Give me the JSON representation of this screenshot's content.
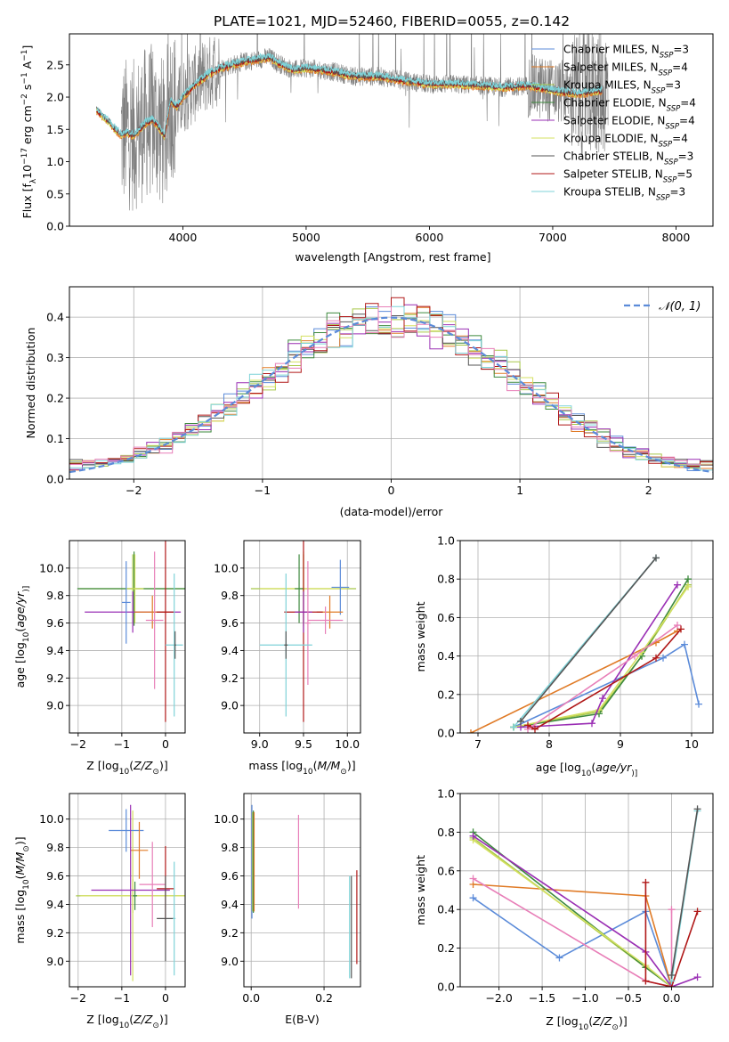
{
  "title": "PLATE=1021, MJD=52460, FIBERID=0055, z=0.142",
  "colors": {
    "chabrier_miles": "#5b8bd9",
    "salpeter_miles": "#e07b27",
    "kroupa_miles": "#a8c84a",
    "chabrier_elodie": "#3e8a3e",
    "salpeter_elodie": "#9a2fb4",
    "kroupa_elodie": "#d4e060",
    "chabrier_stelib": "#555555",
    "salpeter_stelib": "#b01818",
    "kroupa_stelib": "#7fd3d8",
    "pink": "#e87fb8",
    "data": "#808080",
    "gaussian": "#5b8bd9",
    "grid": "#b0b0b0"
  },
  "chart_data": [
    {
      "id": "spectrum",
      "type": "line",
      "title": "PLATE=1021, MJD=52460, FIBERID=0055, z=0.142",
      "xlabel": "wavelength [Angstrom, rest frame]",
      "ylabel": "Flux [f_λ 10^-17 erg cm^-2 s^-1 A^-1]",
      "ylabel_parts": [
        "Flux [f",
        "λ",
        "10",
        "−17",
        " erg cm",
        "−2",
        " s",
        "−1",
        " A",
        "−1",
        "]"
      ],
      "xlim": [
        3080,
        8300
      ],
      "ylim": [
        0,
        2.98
      ],
      "xticks": [
        4000,
        5000,
        6000,
        7000,
        8000
      ],
      "xtick_labels": [
        "4000",
        "5000",
        "6000",
        "7000",
        "8000"
      ],
      "yticks": [
        0.0,
        0.5,
        1.0,
        1.5,
        2.0,
        2.5
      ],
      "ytick_labels": [
        "0.0",
        "0.5",
        "1.0",
        "1.5",
        "2.0",
        "2.5"
      ],
      "grid": false,
      "legend_position": "top-right",
      "legend": [
        {
          "label": "Chabrier MILES, N",
          "sub": "SSP",
          "suffix": "=3",
          "color_key": "chabrier_miles"
        },
        {
          "label": "Salpeter MILES, N",
          "sub": "SSP",
          "suffix": "=4",
          "color_key": "salpeter_miles"
        },
        {
          "label": "Kroupa MILES, N",
          "sub": "SSP",
          "suffix": "=3",
          "color_key": "kroupa_miles"
        },
        {
          "label": "Chabrier ELODIE, N",
          "sub": "SSP",
          "suffix": "=4",
          "color_key": "chabrier_elodie"
        },
        {
          "label": "Salpeter ELODIE, N",
          "sub": "SSP",
          "suffix": "=4",
          "color_key": "salpeter_elodie"
        },
        {
          "label": "Kroupa ELODIE, N",
          "sub": "SSP",
          "suffix": "=4",
          "color_key": "kroupa_elodie"
        },
        {
          "label": "Chabrier STELIB, N",
          "sub": "SSP",
          "suffix": "=3",
          "color_key": "chabrier_stelib"
        },
        {
          "label": "Salpeter STELIB, N",
          "sub": "SSP",
          "suffix": "=5",
          "color_key": "salpeter_stelib"
        },
        {
          "label": "Kroupa STELIB, N",
          "sub": "SSP",
          "suffix": "=3",
          "color_key": "kroupa_stelib"
        }
      ],
      "model_continuum": {
        "x": [
          3300,
          3350,
          3400,
          3450,
          3500,
          3550,
          3600,
          3650,
          3700,
          3750,
          3800,
          3850,
          3900,
          3950,
          4000,
          4100,
          4200,
          4300,
          4400,
          4500,
          4600,
          4700,
          4800,
          4900,
          5000,
          5200,
          5400,
          5600,
          5800,
          6000,
          6200,
          6400,
          6600,
          6800,
          7000,
          7200,
          7400
        ],
        "y": [
          1.8,
          1.7,
          1.62,
          1.5,
          1.42,
          1.45,
          1.4,
          1.5,
          1.6,
          1.65,
          1.55,
          1.4,
          1.95,
          1.85,
          2.0,
          2.2,
          2.35,
          2.45,
          2.5,
          2.55,
          2.58,
          2.62,
          2.5,
          2.42,
          2.45,
          2.4,
          2.32,
          2.32,
          2.25,
          2.2,
          2.2,
          2.18,
          2.15,
          2.18,
          2.1,
          2.05,
          2.1
        ]
      },
      "data_x_range": [
        3500,
        7450
      ]
    },
    {
      "id": "residual-histogram",
      "type": "line",
      "xlabel": "(data-model)/error",
      "ylabel": "Normed distribution",
      "xlim": [
        -2.5,
        2.5
      ],
      "ylim": [
        0,
        0.475
      ],
      "xticks": [
        -2,
        -1,
        0,
        1,
        2
      ],
      "xtick_labels": [
        "−2",
        "−1",
        "0",
        "1",
        "2"
      ],
      "yticks": [
        0.0,
        0.1,
        0.2,
        0.3,
        0.4
      ],
      "ytick_labels": [
        "0.0",
        "0.1",
        "0.2",
        "0.3",
        "0.4"
      ],
      "grid": true,
      "legend_position": "top-right",
      "legend": [
        {
          "label": "𝒩(0, 1)",
          "style": "dashed",
          "color_key": "gaussian"
        }
      ],
      "bin_width": 0.1,
      "bin_start": -2.5,
      "bin_count": 50
    },
    {
      "id": "age-vs-z",
      "type": "scatter",
      "xlabel_parts": [
        "Z [log",
        "10",
        "(",
        "Z/Z",
        "⊙",
        ")]"
      ],
      "ylabel_parts": [
        "age  [log",
        "10",
        "(",
        "age/yr",
        ")]"
      ],
      "xlim": [
        -2.2,
        0.45
      ],
      "ylim": [
        8.8,
        10.2
      ],
      "xticks": [
        -2,
        -1,
        0
      ],
      "xtick_labels": [
        "−2",
        "−1",
        "0"
      ],
      "yticks": [
        9.0,
        9.2,
        9.4,
        9.6,
        9.8,
        10.0
      ],
      "ytick_labels": [
        "9.0",
        "9.2",
        "9.4",
        "9.6",
        "9.8",
        "10.0"
      ],
      "grid": true,
      "points": [
        {
          "x": -0.75,
          "y": 9.85,
          "xerr": 1.25,
          "yerr": 0.25,
          "color_key": "kroupa_miles"
        },
        {
          "x": -0.72,
          "y": 9.85,
          "xerr": 1.3,
          "yerr": 0.27,
          "color_key": "chabrier_elodie"
        },
        {
          "x": -0.7,
          "y": 9.85,
          "xerr": 0.2,
          "yerr": 0.25,
          "color_key": "kroupa_elodie"
        },
        {
          "x": -0.75,
          "y": 9.68,
          "xerr": 1.1,
          "yerr": 0.15,
          "color_key": "salpeter_elodie"
        },
        {
          "x": -0.3,
          "y": 9.68,
          "xerr": 0.4,
          "yerr": 0.12,
          "color_key": "salpeter_miles"
        },
        {
          "x": -0.25,
          "y": 9.62,
          "xerr": 0.2,
          "yerr": 0.5,
          "color_key": "pink"
        },
        {
          "x": -0.9,
          "y": 9.75,
          "xerr": 0.1,
          "yerr": 0.3,
          "color_key": "chabrier_miles"
        },
        {
          "x": 0.0,
          "y": 9.68,
          "xerr": 0.2,
          "yerr": 0.8,
          "color_key": "salpeter_stelib"
        },
        {
          "x": 0.2,
          "y": 9.44,
          "xerr": 0.2,
          "yerr": 0.52,
          "color_key": "kroupa_stelib"
        },
        {
          "x": 0.22,
          "y": 9.44,
          "xerr": 0.02,
          "yerr": 0.1,
          "color_key": "chabrier_stelib"
        }
      ]
    },
    {
      "id": "age-vs-mass",
      "type": "scatter",
      "xlabel_parts": [
        "mass [log",
        "10",
        "(",
        "M/M",
        "⊙",
        ")]"
      ],
      "xlim": [
        8.82,
        10.15
      ],
      "ylim": [
        8.8,
        10.2
      ],
      "xticks": [
        9.0,
        9.5,
        10.0
      ],
      "xtick_labels": [
        "9.0",
        "9.5",
        "10.0"
      ],
      "yticks": [
        9.0,
        9.2,
        9.4,
        9.6,
        9.8,
        10.0
      ],
      "ytick_labels": [
        "9.0",
        "9.2",
        "9.4",
        "9.6",
        "9.8",
        "10.0"
      ],
      "grid": true,
      "points": [
        {
          "x": 9.5,
          "y": 9.85,
          "xerr": 0.6,
          "yerr": 0.25,
          "color_key": "kroupa_miles"
        },
        {
          "x": 9.5,
          "y": 9.85,
          "xerr": 0.5,
          "yerr": 0.27,
          "color_key": "kroupa_elodie"
        },
        {
          "x": 9.45,
          "y": 9.85,
          "xerr": 0.05,
          "yerr": 0.25,
          "color_key": "chabrier_elodie"
        },
        {
          "x": 9.92,
          "y": 9.86,
          "xerr": 0.1,
          "yerr": 0.2,
          "color_key": "chabrier_miles"
        },
        {
          "x": 9.8,
          "y": 9.68,
          "xerr": 0.15,
          "yerr": 0.12,
          "color_key": "salpeter_miles"
        },
        {
          "x": 9.5,
          "y": 9.68,
          "xerr": 0.22,
          "yerr": 0.8,
          "color_key": "salpeter_stelib"
        },
        {
          "x": 9.5,
          "y": 9.68,
          "xerr": 0.1,
          "yerr": 0.15,
          "color_key": "salpeter_elodie"
        },
        {
          "x": 9.75,
          "y": 9.62,
          "xerr": 0.2,
          "yerr": 0.1,
          "color_key": "pink"
        },
        {
          "x": 9.55,
          "y": 9.6,
          "xerr": 0.03,
          "yerr": 0.45,
          "color_key": "pink"
        },
        {
          "x": 9.3,
          "y": 9.44,
          "xerr": 0.3,
          "yerr": 0.52,
          "color_key": "kroupa_stelib"
        },
        {
          "x": 9.3,
          "y": 9.44,
          "xerr": 0.02,
          "yerr": 0.1,
          "color_key": "chabrier_stelib"
        }
      ]
    },
    {
      "id": "mass-weight-vs-age",
      "type": "line",
      "xlabel_parts": [
        "age  [log",
        "10",
        "(",
        "age/yr",
        ")]"
      ],
      "ylabel": "mass weight",
      "xlim": [
        6.75,
        10.3
      ],
      "ylim": [
        0,
        1.0
      ],
      "xticks": [
        7,
        8,
        9,
        10
      ],
      "xtick_labels": [
        "7",
        "8",
        "9",
        "10"
      ],
      "yticks": [
        0.0,
        0.2,
        0.4,
        0.6,
        0.8,
        1.0
      ],
      "ytick_labels": [
        "0.0",
        "0.2",
        "0.4",
        "0.6",
        "0.8",
        "1.0"
      ],
      "grid": true,
      "series": [
        {
          "color_key": "chabrier_miles",
          "x": [
            7.5,
            9.6,
            9.9,
            10.1
          ],
          "y": [
            0.03,
            0.39,
            0.46,
            0.15
          ]
        },
        {
          "color_key": "salpeter_miles",
          "x": [
            6.9,
            9.5,
            9.8
          ],
          "y": [
            0.0,
            0.47,
            0.53
          ]
        },
        {
          "color_key": "kroupa_miles",
          "x": [
            7.5,
            8.7,
            9.3,
            9.95
          ],
          "y": [
            0.03,
            0.11,
            0.4,
            0.77
          ]
        },
        {
          "color_key": "chabrier_elodie",
          "x": [
            7.5,
            8.7,
            9.3,
            9.95
          ],
          "y": [
            0.03,
            0.1,
            0.4,
            0.8
          ]
        },
        {
          "color_key": "kroupa_elodie",
          "x": [
            7.5,
            8.7,
            9.3,
            9.95
          ],
          "y": [
            0.03,
            0.12,
            0.42,
            0.76
          ]
        },
        {
          "color_key": "salpeter_elodie",
          "x": [
            7.6,
            8.6,
            8.75,
            9.8
          ],
          "y": [
            0.03,
            0.05,
            0.18,
            0.77
          ]
        },
        {
          "color_key": "pink",
          "x": [
            7.7,
            9.2,
            9.8
          ],
          "y": [
            0.02,
            0.4,
            0.56
          ]
        },
        {
          "color_key": "salpeter_stelib",
          "x": [
            7.7,
            7.8,
            9.5,
            9.85
          ],
          "y": [
            0.04,
            0.02,
            0.39,
            0.54
          ]
        },
        {
          "color_key": "kroupa_stelib",
          "x": [
            7.5,
            9.5
          ],
          "y": [
            0.03,
            0.91
          ]
        },
        {
          "color_key": "chabrier_stelib",
          "x": [
            7.6,
            9.5
          ],
          "y": [
            0.06,
            0.91
          ]
        }
      ]
    },
    {
      "id": "mass-vs-z",
      "type": "scatter",
      "xlabel_parts": [
        "Z [log",
        "10",
        "(",
        "Z/Z",
        "⊙",
        ")]"
      ],
      "ylabel_parts": [
        "mass [log",
        "10",
        "(",
        "M/M",
        "⊙",
        ")]"
      ],
      "xlim": [
        -2.2,
        0.45
      ],
      "ylim": [
        8.82,
        10.18
      ],
      "xticks": [
        -2,
        -1,
        0
      ],
      "xtick_labels": [
        "−2",
        "−1",
        "0"
      ],
      "yticks": [
        9.0,
        9.2,
        9.4,
        9.6,
        9.8,
        10.0
      ],
      "ytick_labels": [
        "9.0",
        "9.2",
        "9.4",
        "9.6",
        "9.8",
        "10.0"
      ],
      "grid": true,
      "points": [
        {
          "x": -0.75,
          "y": 9.46,
          "xerr": 1.3,
          "yerr": 0.12,
          "color_key": "kroupa_miles"
        },
        {
          "x": -0.75,
          "y": 9.46,
          "xerr": 1.2,
          "yerr": 0.6,
          "color_key": "kroupa_elodie"
        },
        {
          "x": -0.7,
          "y": 9.46,
          "xerr": 0.05,
          "yerr": 0.1,
          "color_key": "chabrier_elodie"
        },
        {
          "x": -0.9,
          "y": 9.92,
          "xerr": 0.4,
          "yerr": 0.15,
          "color_key": "chabrier_miles"
        },
        {
          "x": -0.6,
          "y": 9.78,
          "xerr": 0.2,
          "yerr": 0.2,
          "color_key": "salpeter_miles"
        },
        {
          "x": -0.8,
          "y": 9.5,
          "xerr": 0.9,
          "yerr": 0.6,
          "color_key": "salpeter_elodie"
        },
        {
          "x": -0.3,
          "y": 9.54,
          "xerr": 0.3,
          "yerr": 0.3,
          "color_key": "pink"
        },
        {
          "x": 0.0,
          "y": 9.51,
          "xerr": 0.2,
          "yerr": 0.3,
          "color_key": "salpeter_stelib"
        },
        {
          "x": 0.0,
          "y": 9.3,
          "xerr": 0.2,
          "yerr": 0.3,
          "color_key": "chabrier_stelib"
        },
        {
          "x": 0.2,
          "y": 9.3,
          "xerr": 0.03,
          "yerr": 0.4,
          "color_key": "kroupa_stelib"
        }
      ]
    },
    {
      "id": "mass-vs-ebv",
      "type": "scatter",
      "xlabel": "E(B-V)",
      "xlim": [
        -0.02,
        0.3
      ],
      "ylim": [
        8.82,
        10.18
      ],
      "xticks": [
        0.0,
        0.2
      ],
      "xtick_labels": [
        "0.0",
        "0.2"
      ],
      "yticks": [
        9.0,
        9.2,
        9.4,
        9.6,
        9.8,
        10.0
      ],
      "ytick_labels": [
        "9.0",
        "9.2",
        "9.4",
        "9.6",
        "9.8",
        "10.0"
      ],
      "grid": true,
      "points": [
        {
          "x": 0.002,
          "y": 9.7,
          "xerr": 0,
          "yerr": 0.4,
          "color_key": "chabrier_miles"
        },
        {
          "x": 0.004,
          "y": 9.7,
          "xerr": 0,
          "yerr": 0.35,
          "color_key": "kroupa_miles"
        },
        {
          "x": 0.006,
          "y": 9.7,
          "xerr": 0,
          "yerr": 0.36,
          "color_key": "chabrier_elodie"
        },
        {
          "x": 0.008,
          "y": 9.7,
          "xerr": 0,
          "yerr": 0.35,
          "color_key": "salpeter_miles"
        },
        {
          "x": 0.13,
          "y": 9.7,
          "xerr": 0,
          "yerr": 0.33,
          "color_key": "pink"
        },
        {
          "x": 0.27,
          "y": 9.24,
          "xerr": 0,
          "yerr": 0.36,
          "color_key": "kroupa_stelib"
        },
        {
          "x": 0.275,
          "y": 9.24,
          "xerr": 0,
          "yerr": 0.36,
          "color_key": "chabrier_stelib"
        },
        {
          "x": 0.29,
          "y": 9.31,
          "xerr": 0,
          "yerr": 0.33,
          "color_key": "salpeter_stelib"
        }
      ]
    },
    {
      "id": "mass-weight-vs-z",
      "type": "line",
      "xlabel_parts": [
        "Z [log",
        "10",
        "(",
        "Z/Z",
        "⊙",
        ")]"
      ],
      "ylabel": "mass weight",
      "xlim": [
        -2.45,
        0.48
      ],
      "ylim": [
        0,
        1.0
      ],
      "xticks": [
        -2.0,
        -1.5,
        -1.0,
        -0.5,
        0.0
      ],
      "xtick_labels": [
        "−2.0",
        "−1.5",
        "−1.0",
        "−0.5",
        "0.0"
      ],
      "yticks": [
        0.0,
        0.2,
        0.4,
        0.6,
        0.8,
        1.0
      ],
      "ytick_labels": [
        "0.0",
        "0.2",
        "0.4",
        "0.6",
        "0.8",
        "1.0"
      ],
      "grid": true,
      "series": [
        {
          "color_key": "chabrier_miles",
          "x": [
            -2.3,
            -1.3,
            -0.3,
            0.0
          ],
          "y": [
            0.46,
            0.15,
            0.39,
            0.0
          ]
        },
        {
          "color_key": "salpeter_miles",
          "x": [
            -2.3,
            -0.3,
            0.0
          ],
          "y": [
            0.53,
            0.47,
            0.0
          ]
        },
        {
          "color_key": "kroupa_miles",
          "x": [
            -2.3,
            -0.3,
            0.0
          ],
          "y": [
            0.77,
            0.1,
            0.0
          ]
        },
        {
          "color_key": "chabrier_elodie",
          "x": [
            -2.3,
            -0.3,
            0.0
          ],
          "y": [
            0.8,
            0.1,
            0.0
          ]
        },
        {
          "color_key": "kroupa_elodie",
          "x": [
            -2.3,
            -0.3,
            0.0
          ],
          "y": [
            0.76,
            0.11,
            0.0
          ]
        },
        {
          "color_key": "salpeter_elodie",
          "x": [
            -2.3,
            -0.3,
            0.0,
            0.3
          ],
          "y": [
            0.78,
            0.18,
            0.0,
            0.05
          ]
        },
        {
          "color_key": "pink",
          "x": [
            -2.3,
            -0.3,
            0.0,
            0.0
          ],
          "y": [
            0.56,
            0.03,
            0.0,
            0.4
          ]
        },
        {
          "color_key": "salpeter_stelib",
          "x": [
            -0.3,
            -0.3,
            0.0,
            0.3
          ],
          "y": [
            0.54,
            0.03,
            0.0,
            0.39
          ]
        },
        {
          "color_key": "kroupa_stelib",
          "x": [
            0.0,
            0.3
          ],
          "y": [
            0.03,
            0.91
          ]
        },
        {
          "color_key": "chabrier_stelib",
          "x": [
            0.0,
            0.3
          ],
          "y": [
            0.06,
            0.92
          ]
        }
      ]
    }
  ]
}
